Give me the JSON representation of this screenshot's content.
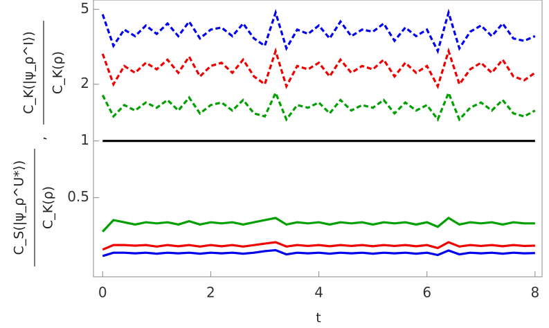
{
  "chart_data": {
    "type": "line",
    "x_label": "t",
    "y_label_left": {
      "numerator": "C_S(|ψ_ρ^U*⟩)",
      "denominator": "C_K(ρ)"
    },
    "y_label_separator": ",",
    "y_label_right": {
      "numerator": "C_K(|ψ_ρ^I⟩)",
      "denominator": "C_K(ρ)"
    },
    "y_scale": "log",
    "xlim": [
      -0.17,
      8.13
    ],
    "ylim": [
      0.19,
      5.6
    ],
    "xticks": [
      0,
      2,
      4,
      6,
      8
    ],
    "yticks": [
      0.5,
      1,
      2,
      5
    ],
    "x": [
      0,
      0.2,
      0.4,
      0.6,
      0.8,
      1,
      1.2,
      1.4,
      1.6,
      1.8,
      2,
      2.2,
      2.4,
      2.6,
      2.8,
      3,
      3.2,
      3.4,
      3.6,
      3.8,
      4,
      4.2,
      4.4,
      4.6,
      4.8,
      5,
      5.2,
      5.4,
      5.6,
      5.8,
      6,
      6.2,
      6.4,
      6.6,
      6.8,
      7,
      7.2,
      7.4,
      7.6,
      7.8,
      8
    ],
    "series": [
      {
        "color": "#0000ee",
        "style": "dashed",
        "values": [
          4.7,
          3.2,
          3.9,
          3.6,
          4.1,
          3.7,
          4.2,
          3.6,
          4.3,
          3.5,
          3.9,
          4.0,
          3.6,
          4.2,
          3.5,
          3.2,
          4.8,
          3.1,
          3.9,
          3.7,
          4.1,
          3.5,
          4.3,
          3.6,
          3.9,
          3.8,
          4.2,
          3.4,
          4.0,
          3.6,
          3.9,
          3.0,
          4.8,
          3.1,
          3.8,
          4.1,
          3.6,
          4.2,
          3.5,
          3.4,
          3.6
        ]
      },
      {
        "color": "#ee0000",
        "style": "dashed",
        "values": [
          2.9,
          2.0,
          2.5,
          2.3,
          2.6,
          2.4,
          2.7,
          2.3,
          2.8,
          2.2,
          2.5,
          2.6,
          2.3,
          2.7,
          2.2,
          2.0,
          3.0,
          1.95,
          2.5,
          2.4,
          2.6,
          2.2,
          2.7,
          2.3,
          2.5,
          2.4,
          2.7,
          2.2,
          2.6,
          2.3,
          2.5,
          1.95,
          3.0,
          2.0,
          2.4,
          2.6,
          2.3,
          2.7,
          2.2,
          2.1,
          2.3
        ]
      },
      {
        "color": "#00a000",
        "style": "dashed",
        "values": [
          1.75,
          1.35,
          1.55,
          1.45,
          1.6,
          1.5,
          1.65,
          1.45,
          1.7,
          1.4,
          1.55,
          1.6,
          1.45,
          1.65,
          1.4,
          1.35,
          1.8,
          1.3,
          1.55,
          1.5,
          1.6,
          1.4,
          1.65,
          1.45,
          1.55,
          1.5,
          1.65,
          1.4,
          1.6,
          1.45,
          1.55,
          1.3,
          1.8,
          1.3,
          1.5,
          1.6,
          1.45,
          1.65,
          1.4,
          1.35,
          1.45
        ]
      },
      {
        "color": "#000000",
        "style": "solid",
        "values": [
          1,
          1,
          1,
          1,
          1,
          1,
          1,
          1,
          1,
          1,
          1,
          1,
          1,
          1,
          1,
          1,
          1,
          1,
          1,
          1,
          1,
          1,
          1,
          1,
          1,
          1,
          1,
          1,
          1,
          1,
          1,
          1,
          1,
          1,
          1,
          1,
          1,
          1,
          1,
          1,
          1
        ]
      },
      {
        "color": "#00a000",
        "style": "solid",
        "values": [
          0.33,
          0.38,
          0.37,
          0.36,
          0.37,
          0.365,
          0.37,
          0.36,
          0.375,
          0.36,
          0.37,
          0.365,
          0.37,
          0.36,
          0.37,
          0.38,
          0.39,
          0.36,
          0.37,
          0.365,
          0.37,
          0.36,
          0.37,
          0.365,
          0.37,
          0.36,
          0.37,
          0.365,
          0.37,
          0.36,
          0.37,
          0.35,
          0.39,
          0.36,
          0.37,
          0.365,
          0.37,
          0.36,
          0.37,
          0.365,
          0.365
        ]
      },
      {
        "color": "#ee0000",
        "style": "solid",
        "values": [
          0.265,
          0.28,
          0.28,
          0.278,
          0.28,
          0.275,
          0.28,
          0.276,
          0.28,
          0.275,
          0.28,
          0.276,
          0.28,
          0.275,
          0.28,
          0.285,
          0.29,
          0.275,
          0.28,
          0.277,
          0.28,
          0.276,
          0.28,
          0.277,
          0.28,
          0.276,
          0.28,
          0.277,
          0.28,
          0.276,
          0.28,
          0.27,
          0.29,
          0.275,
          0.28,
          0.277,
          0.28,
          0.276,
          0.28,
          0.277,
          0.278
        ]
      },
      {
        "color": "#0000ee",
        "style": "solid",
        "values": [
          0.245,
          0.255,
          0.255,
          0.253,
          0.255,
          0.252,
          0.255,
          0.253,
          0.255,
          0.252,
          0.255,
          0.253,
          0.255,
          0.252,
          0.255,
          0.26,
          0.263,
          0.25,
          0.255,
          0.253,
          0.255,
          0.252,
          0.255,
          0.253,
          0.255,
          0.252,
          0.255,
          0.253,
          0.255,
          0.252,
          0.255,
          0.248,
          0.262,
          0.25,
          0.255,
          0.253,
          0.255,
          0.252,
          0.255,
          0.253,
          0.254
        ]
      }
    ]
  }
}
